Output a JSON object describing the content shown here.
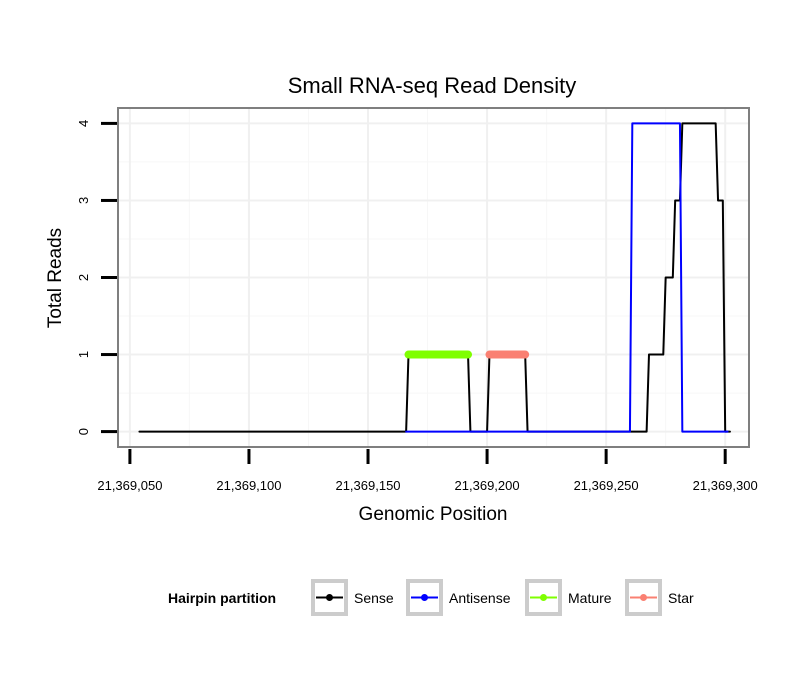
{
  "chart_data": {
    "type": "line",
    "title": "Small RNA-seq Read Density",
    "xlabel": "Genomic Position",
    "ylabel": "Total Reads",
    "xlim": [
      21369045,
      21369310
    ],
    "ylim": [
      -0.2,
      4.2
    ],
    "x_ticks": [
      21369050,
      21369100,
      21369150,
      21369200,
      21369250,
      21369300
    ],
    "x_tick_labels": [
      "21,369,050",
      "21,369,100",
      "21,369,150",
      "21,369,200",
      "21,369,250",
      "21,369,300"
    ],
    "y_ticks": [
      0,
      1,
      2,
      3,
      4
    ],
    "y_tick_labels": [
      "0",
      "1",
      "2",
      "3",
      "4"
    ],
    "grid": true,
    "legend": {
      "title": "Hairpin partition",
      "position": "bottom",
      "items": [
        {
          "name": "Sense",
          "color": "#000000"
        },
        {
          "name": "Antisense",
          "color": "#0000ff"
        },
        {
          "name": "Mature",
          "color": "#7fff00"
        },
        {
          "name": "Star",
          "color": "#fa8072"
        }
      ]
    },
    "series": [
      {
        "name": "Sense",
        "color": "#000000",
        "width": 2,
        "points": [
          [
            21369054,
            0
          ],
          [
            21369166,
            0
          ],
          [
            21369167,
            1
          ],
          [
            21369192,
            1
          ],
          [
            21369193,
            0
          ],
          [
            21369200,
            0
          ],
          [
            21369201,
            1
          ],
          [
            21369216,
            1
          ],
          [
            21369217,
            0
          ],
          [
            21369267,
            0
          ],
          [
            21369268,
            1
          ],
          [
            21369274,
            1
          ],
          [
            21369275,
            2
          ],
          [
            21369278,
            2
          ],
          [
            21369279,
            3
          ],
          [
            21369281,
            3
          ],
          [
            21369282,
            4
          ],
          [
            21369296,
            4
          ],
          [
            21369297,
            3
          ],
          [
            21369299,
            3
          ],
          [
            21369300,
            0
          ],
          [
            21369302,
            0
          ]
        ]
      },
      {
        "name": "Antisense",
        "color": "#0000ff",
        "width": 2,
        "points": [
          [
            21369166,
            0
          ],
          [
            21369260,
            0
          ],
          [
            21369261,
            4
          ],
          [
            21369281,
            4
          ],
          [
            21369282,
            0
          ],
          [
            21369301,
            0
          ]
        ]
      },
      {
        "name": "Mature",
        "color": "#7fff00",
        "width": 8,
        "points": [
          [
            21369167,
            1
          ],
          [
            21369192,
            1
          ]
        ]
      },
      {
        "name": "Star",
        "color": "#fa8072",
        "width": 8,
        "points": [
          [
            21369201,
            1
          ],
          [
            21369216,
            1
          ]
        ]
      }
    ]
  }
}
